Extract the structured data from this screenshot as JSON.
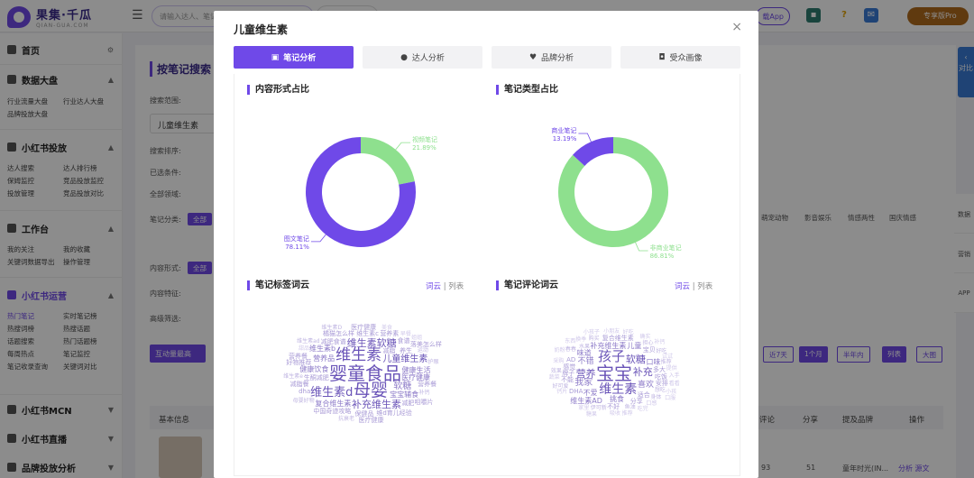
{
  "app": {
    "logo_title": "果集·千瓜",
    "logo_sub": "QIAN-GUA.COM",
    "search_placeholder": "请输入达人、笔记",
    "app_button": "载App",
    "vip_button": "专享版Pro",
    "colors": {
      "brand": "#6f49e8",
      "vip": "#b06a1c"
    }
  },
  "sidebar": {
    "home": "首页",
    "sections": [
      {
        "title": "数据大盘",
        "items": [
          "行业流量大盘",
          "行业达人大盘",
          "品牌投放大盘"
        ]
      },
      {
        "title": "小红书投放",
        "items": [
          "达人搜索",
          "达人排行榜",
          "保姆监控",
          "竞品投放监控",
          "投放管理",
          "竞品投放对比"
        ]
      },
      {
        "title": "工作台",
        "items": [
          "我的关注",
          "我的收藏",
          "关键词数据导出",
          "操作管理"
        ]
      },
      {
        "title": "小红书运营",
        "items": [
          "热门笔记",
          "实时笔记榜",
          "热搜词榜",
          "热搜话题",
          "话题搜索",
          "热门话题榜",
          "每周热点",
          "笔记监控",
          "笔记收录查询",
          "关键词对比"
        ]
      },
      {
        "title": "小红书MCN",
        "items": []
      },
      {
        "title": "小红书直播",
        "items": []
      },
      {
        "title": "品牌投放分析",
        "items": []
      }
    ]
  },
  "background": {
    "page_title": "按笔记搜索",
    "search_value": "儿童维生素",
    "row_labels": [
      "搜索范围:",
      "搜索排序:",
      "已选条件:",
      "全部领域:",
      "笔记分类:",
      "内容形式:",
      "内容特征:",
      "高级筛选:"
    ],
    "all_tag": "全部",
    "categories": [
      "萌宠动物",
      "影音娱乐",
      "情感两性",
      "国庆情感"
    ],
    "time_buttons": [
      "近7天",
      "1个月",
      "半年内"
    ],
    "view_buttons": [
      "列表",
      "大图"
    ],
    "left_button": "互动量最高",
    "table_headers": [
      "基本信息",
      "评论",
      "分享",
      "提及品牌",
      "操作"
    ],
    "row_values": {
      "comments": "93",
      "shares": "51",
      "brand": "童年时光(IN...",
      "actions": "分析  源文"
    },
    "right_float": "对比",
    "right_tools": [
      "数据",
      "营销",
      "APP"
    ]
  },
  "modal": {
    "title": "儿童维生素",
    "close": "×",
    "tabs": [
      {
        "label": "笔记分析",
        "icon": "document-icon",
        "glyph": "▣",
        "active": true
      },
      {
        "label": "达人分析",
        "icon": "user-icon",
        "glyph": "●",
        "active": false
      },
      {
        "label": "品牌分析",
        "icon": "heart-icon",
        "glyph": "♥",
        "active": false
      },
      {
        "label": "受众画像",
        "icon": "profile-icon",
        "glyph": "◘",
        "active": false
      }
    ],
    "sections": {
      "content_form": "内容形式占比",
      "note_type": "笔记类型占比",
      "tag_cloud": "笔记标签词云",
      "comment_cloud": "笔记评论词云"
    },
    "cloud_toggle": {
      "cloud": "词云",
      "list": "列表"
    }
  },
  "chart_data": [
    {
      "type": "pie",
      "title": "内容形式占比",
      "donut": true,
      "slices": [
        {
          "label": "视频笔记",
          "value": 21.89,
          "display": "21.89%",
          "color": "#8ee08e"
        },
        {
          "label": "图文笔记",
          "value": 78.11,
          "display": "78.11%",
          "color": "#6f49e8"
        }
      ]
    },
    {
      "type": "pie",
      "title": "笔记类型占比",
      "donut": true,
      "slices": [
        {
          "label": "非商业笔记",
          "value": 86.81,
          "display": "86.81%",
          "color": "#8ee08e"
        },
        {
          "label": "商业笔记",
          "value": 13.19,
          "display": "13.19%",
          "color": "#6f49e8"
        }
      ]
    }
  ],
  "tag_cloud_words": [
    {
      "t": "婴童食品",
      "s": 20,
      "c": "#6a54b8"
    },
    {
      "t": "母婴",
      "s": 19,
      "c": "#6a54b8"
    },
    {
      "t": "维生素",
      "s": 17,
      "c": "#6a54b8"
    },
    {
      "t": "维生素d",
      "s": 13,
      "c": "#6a54b8"
    },
    {
      "t": "维生素软糖",
      "s": 11,
      "c": "#6a54b8"
    },
    {
      "t": "补充维生素",
      "s": 11,
      "c": "#6a54b8"
    },
    {
      "t": "儿童维生素",
      "s": 10,
      "c": "#6a54b8"
    },
    {
      "t": "软糖",
      "s": 10,
      "c": "#8c7ac8"
    },
    {
      "t": "营养品",
      "s": 8,
      "c": "#8c7ac8"
    },
    {
      "t": "医疗健康",
      "s": 8,
      "c": "#8c7ac8"
    },
    {
      "t": "健康饮食",
      "s": 8,
      "c": "#8c7ac8"
    },
    {
      "t": "复合维生素",
      "s": 8,
      "c": "#8c7ac8"
    },
    {
      "t": "宝宝辅食",
      "s": 8,
      "c": "#8c7ac8"
    },
    {
      "t": "维生素b",
      "s": 8,
      "c": "#8c7ac8"
    },
    {
      "t": "健康生活",
      "s": 8,
      "c": "#8c7ac8"
    },
    {
      "t": "生酮减肥",
      "s": 7,
      "c": "#a89ad6"
    },
    {
      "t": "减脂",
      "s": 7,
      "c": "#a89ad6"
    },
    {
      "t": "维生素c",
      "s": 7,
      "c": "#a89ad6"
    },
    {
      "t": "保健品",
      "s": 7,
      "c": "#a89ad6"
    },
    {
      "t": "食谱",
      "s": 7,
      "c": "#a89ad6"
    },
    {
      "t": "养生",
      "s": 7,
      "c": "#a89ad6"
    },
    {
      "t": "橘猫怎么样",
      "s": 7,
      "c": "#a89ad6"
    },
    {
      "t": "维d育儿经验",
      "s": 7,
      "c": "#a89ad6"
    },
    {
      "t": "减肥食谱",
      "s": 7,
      "c": "#a89ad6"
    },
    {
      "t": "中国奇迹攻略",
      "s": 7,
      "c": "#a89ad6"
    },
    {
      "t": "营养餐",
      "s": 7,
      "c": "#a89ad6"
    },
    {
      "t": "营养素",
      "s": 7,
      "c": "#a89ad6"
    },
    {
      "t": "好物推荐",
      "s": 7,
      "c": "#a89ad6"
    },
    {
      "t": "减肥",
      "s": 7,
      "c": "#a89ad6"
    },
    {
      "t": "运动",
      "s": 6,
      "c": "#c0b6e2"
    },
    {
      "t": "补钙",
      "s": 6,
      "c": "#c0b6e2"
    },
    {
      "t": "护眼",
      "s": 6,
      "c": "#c0b6e2"
    },
    {
      "t": "抗衰老",
      "s": 6,
      "c": "#c0b6e2"
    },
    {
      "t": "医疗健康",
      "s": 7,
      "c": "#a89ad6"
    },
    {
      "t": "母婴好物",
      "s": 6,
      "c": "#c0b6e2"
    },
    {
      "t": "减脂餐",
      "s": 7,
      "c": "#a89ad6"
    },
    {
      "t": "医疗健康",
      "s": 7,
      "c": "#a89ad6"
    },
    {
      "t": "落美怎么样",
      "s": 7,
      "c": "#a89ad6"
    },
    {
      "t": "营养餐",
      "s": 7,
      "c": "#a89ad6"
    },
    {
      "t": "dha",
      "s": 7,
      "c": "#a89ad6"
    },
    {
      "t": "维生素D",
      "s": 6,
      "c": "#c0b6e2"
    },
    {
      "t": "维生素ad",
      "s": 6,
      "c": "#c0b6e2"
    },
    {
      "t": "维生素e",
      "s": 6,
      "c": "#c0b6e2"
    },
    {
      "t": "姐姐",
      "s": 6,
      "c": "#d0c8ea"
    },
    {
      "t": "甜品",
      "s": 6,
      "c": "#d0c8ea"
    },
    {
      "t": "咀嚼片",
      "s": 7,
      "c": "#a89ad6"
    },
    {
      "t": "美食",
      "s": 6,
      "c": "#d0c8ea"
    },
    {
      "t": "早餐",
      "s": 6,
      "c": "#d0c8ea"
    }
  ],
  "comment_cloud_words": [
    {
      "t": "宝宝",
      "s": 20,
      "c": "#6a54b8"
    },
    {
      "t": "孩子",
      "s": 15,
      "c": "#6a54b8"
    },
    {
      "t": "维生素",
      "s": 14,
      "c": "#6a54b8"
    },
    {
      "t": "营养",
      "s": 11,
      "c": "#6a54b8"
    },
    {
      "t": "补充",
      "s": 11,
      "c": "#6a54b8"
    },
    {
      "t": "软糖",
      "s": 11,
      "c": "#6a54b8"
    },
    {
      "t": "我家",
      "s": 10,
      "c": "#8c7ac8"
    },
    {
      "t": "不错",
      "s": 9,
      "c": "#8c7ac8"
    },
    {
      "t": "喜欢",
      "s": 9,
      "c": "#8c7ac8"
    },
    {
      "t": "不爱",
      "s": 8,
      "c": "#8c7ac8"
    },
    {
      "t": "挑食",
      "s": 8,
      "c": "#8c7ac8"
    },
    {
      "t": "味道",
      "s": 8,
      "c": "#8c7ac8"
    },
    {
      "t": "补充维生素",
      "s": 8,
      "c": "#8c7ac8"
    },
    {
      "t": "维生素AD",
      "s": 8,
      "c": "#8c7ac8"
    },
    {
      "t": "口味",
      "s": 8,
      "c": "#8c7ac8"
    },
    {
      "t": "儿童",
      "s": 8,
      "c": "#8c7ac8"
    },
    {
      "t": "多大",
      "s": 7,
      "c": "#a89ad6"
    },
    {
      "t": "感觉",
      "s": 7,
      "c": "#a89ad6"
    },
    {
      "t": "适合",
      "s": 7,
      "c": "#a89ad6"
    },
    {
      "t": "吃饭",
      "s": 7,
      "c": "#a89ad6"
    },
    {
      "t": "DHA",
      "s": 7,
      "c": "#a89ad6"
    },
    {
      "t": "分享",
      "s": 7,
      "c": "#a89ad6"
    },
    {
      "t": "牌子",
      "s": 7,
      "c": "#a89ad6"
    },
    {
      "t": "安排",
      "s": 7,
      "c": "#a89ad6"
    },
    {
      "t": "宝贝",
      "s": 7,
      "c": "#a89ad6"
    },
    {
      "t": "伊可新",
      "s": 6,
      "c": "#c0b6e2"
    },
    {
      "t": "复合维生素",
      "s": 7,
      "c": "#a89ad6"
    },
    {
      "t": "不好",
      "s": 7,
      "c": "#a89ad6"
    },
    {
      "t": "推荐",
      "s": 6,
      "c": "#c0b6e2"
    },
    {
      "t": "不能",
      "s": 7,
      "c": "#a89ad6"
    },
    {
      "t": "身体",
      "s": 6,
      "c": "#c0b6e2"
    },
    {
      "t": "好可爱",
      "s": 6,
      "c": "#c0b6e2"
    },
    {
      "t": "水果",
      "s": 6,
      "c": "#c0b6e2"
    },
    {
      "t": "鱼油",
      "s": 6,
      "c": "#c0b6e2"
    },
    {
      "t": "想吃",
      "s": 6,
      "c": "#c0b6e2"
    },
    {
      "t": "购买",
      "s": 6,
      "c": "#c0b6e2"
    },
    {
      "t": "担心",
      "s": 6,
      "c": "#c0b6e2"
    },
    {
      "t": "好吃",
      "s": 6,
      "c": "#c0b6e2"
    },
    {
      "t": "效果",
      "s": 6,
      "c": "#c0b6e2"
    },
    {
      "t": "春春",
      "s": 6,
      "c": "#c0b6e2"
    },
    {
      "t": "采购",
      "s": 6,
      "c": "#d0c8ea"
    },
    {
      "t": "试试",
      "s": 6,
      "c": "#d0c8ea"
    },
    {
      "t": "提供",
      "s": 6,
      "c": "#d0c8ea"
    },
    {
      "t": "口感",
      "s": 6,
      "c": "#d0c8ea"
    },
    {
      "t": "吸收",
      "s": 6,
      "c": "#d0c8ea"
    },
    {
      "t": "小朋友",
      "s": 6,
      "c": "#d0c8ea"
    },
    {
      "t": "入手",
      "s": 6,
      "c": "#d0c8ea"
    },
    {
      "t": "吃完",
      "s": 6,
      "c": "#d0c8ea"
    },
    {
      "t": "家里",
      "s": 6,
      "c": "#d0c8ea"
    },
    {
      "t": "换季",
      "s": 6,
      "c": "#d0c8ea"
    },
    {
      "t": "蔬菜",
      "s": 6,
      "c": "#d0c8ea"
    },
    {
      "t": "钙片",
      "s": 6,
      "c": "#d0c8ea"
    },
    {
      "t": "奶粉",
      "s": 6,
      "c": "#d0c8ea"
    },
    {
      "t": "小孩子",
      "s": 6,
      "c": "#d0c8ea"
    },
    {
      "t": "小孩",
      "s": 6,
      "c": "#d0c8ea"
    },
    {
      "t": "好吃",
      "s": 6,
      "c": "#d0c8ea"
    },
    {
      "t": "确实",
      "s": 6,
      "c": "#d0c8ea"
    },
    {
      "t": "推荐",
      "s": 6,
      "c": "#d0c8ea"
    },
    {
      "t": "看看",
      "s": 6,
      "c": "#d0c8ea"
    },
    {
      "t": "补钙",
      "s": 6,
      "c": "#d0c8ea"
    },
    {
      "t": "口服",
      "s": 6,
      "c": "#d0c8ea"
    },
    {
      "t": "糖果",
      "s": 6,
      "c": "#d0c8ea"
    },
    {
      "t": "东西",
      "s": 6,
      "c": "#d0c8ea"
    },
    {
      "t": "AD",
      "s": 7,
      "c": "#a89ad6"
    }
  ]
}
